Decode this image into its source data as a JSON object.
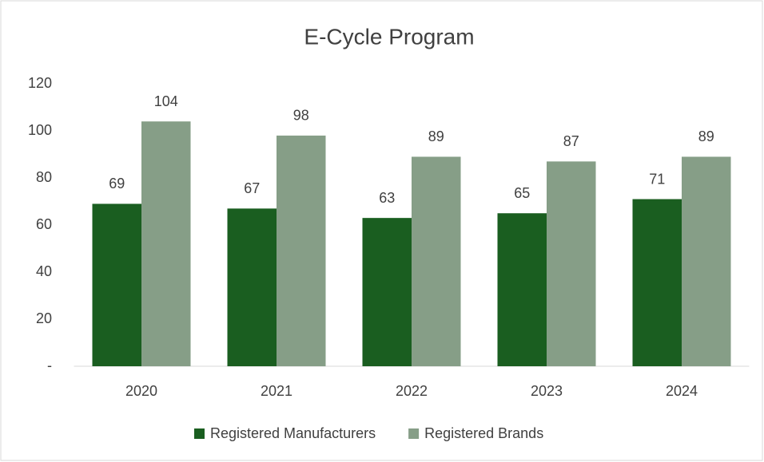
{
  "chart_data": {
    "type": "bar",
    "title": "E-Cycle Program",
    "categories": [
      "2020",
      "2021",
      "2022",
      "2023",
      "2024"
    ],
    "series": [
      {
        "name": "Registered Manufacturers",
        "color": "#1a5e20",
        "values": [
          69,
          67,
          63,
          65,
          71
        ]
      },
      {
        "name": "Registered Brands",
        "color": "#869e87",
        "values": [
          104,
          98,
          89,
          87,
          89
        ]
      }
    ],
    "ylim": [
      0,
      120
    ],
    "yticks": [
      {
        "value": 0,
        "label": "-"
      },
      20,
      40,
      60,
      80,
      100,
      120
    ],
    "grid": false,
    "legend": "bottom"
  }
}
